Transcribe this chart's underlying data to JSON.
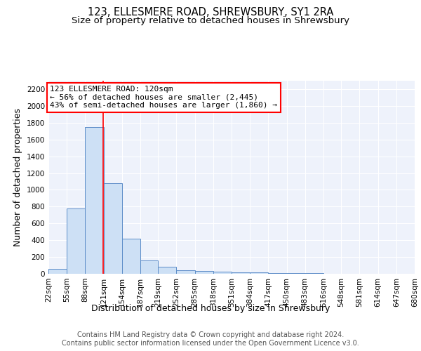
{
  "title": "123, ELLESMERE ROAD, SHREWSBURY, SY1 2RA",
  "subtitle": "Size of property relative to detached houses in Shrewsbury",
  "xlabel": "Distribution of detached houses by size in Shrewsbury",
  "ylabel": "Number of detached properties",
  "footer_line1": "Contains HM Land Registry data © Crown copyright and database right 2024.",
  "footer_line2": "Contains public sector information licensed under the Open Government Licence v3.0.",
  "annotation_line1": "123 ELLESMERE ROAD: 120sqm",
  "annotation_line2": "← 56% of detached houses are smaller (2,445)",
  "annotation_line3": "43% of semi-detached houses are larger (1,860) →",
  "bar_edges": [
    22,
    55,
    88,
    121,
    154,
    187,
    219,
    252,
    285,
    318,
    351,
    384,
    417,
    450,
    483,
    516,
    548,
    581,
    614,
    647,
    680
  ],
  "bar_heights": [
    55,
    775,
    1750,
    1075,
    420,
    155,
    85,
    45,
    35,
    28,
    20,
    15,
    12,
    8,
    6,
    4,
    3,
    2,
    2,
    1
  ],
  "bar_color": "#cde0f5",
  "bar_edge_color": "#5b8cc8",
  "red_line_x": 120,
  "ylim": [
    0,
    2300
  ],
  "yticks": [
    0,
    200,
    400,
    600,
    800,
    1000,
    1200,
    1400,
    1600,
    1800,
    2000,
    2200
  ],
  "background_color": "#eef2fb",
  "grid_color": "#ffffff",
  "title_fontsize": 10.5,
  "subtitle_fontsize": 9.5,
  "axis_label_fontsize": 9,
  "tick_fontsize": 7.5,
  "footer_fontsize": 7,
  "annotation_fontsize": 8
}
